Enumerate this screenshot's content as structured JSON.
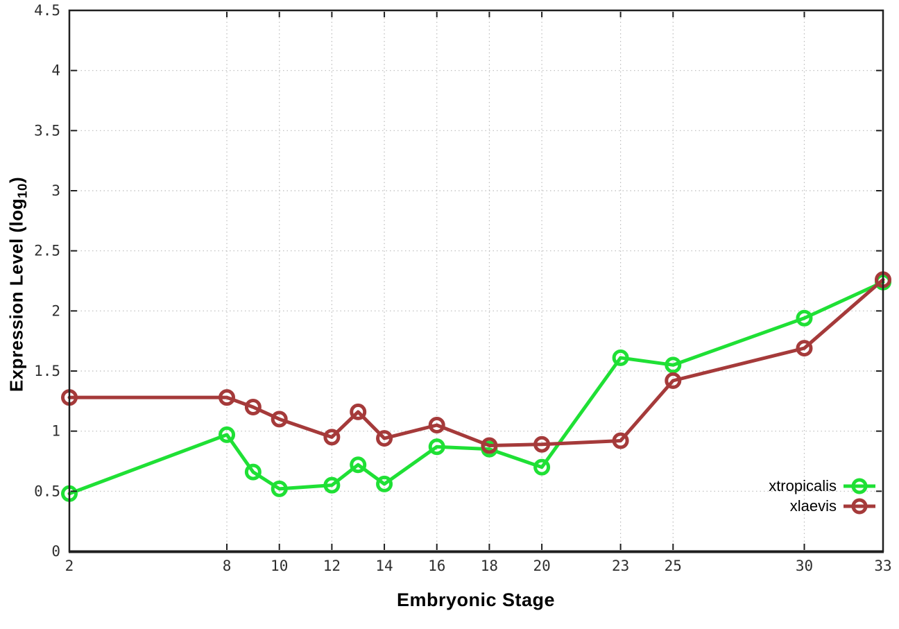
{
  "chart_data": {
    "type": "line",
    "title": "",
    "xlabel": "Embryonic Stage",
    "ylabel": {
      "main": "Expression Level (log",
      "sub": "10",
      "close": ")"
    },
    "x": [
      2,
      8,
      9,
      10,
      12,
      13,
      14,
      16,
      18,
      20,
      23,
      25,
      30,
      33
    ],
    "series": [
      {
        "name": "xtropicalis",
        "color": "#1fe035",
        "marker": "open-circle",
        "values": [
          0.48,
          0.97,
          0.66,
          0.52,
          0.55,
          0.72,
          0.56,
          0.87,
          0.85,
          0.7,
          1.61,
          1.55,
          1.94,
          2.24
        ]
      },
      {
        "name": "xlaevis",
        "color": "#a53a3a",
        "marker": "open-circle",
        "values": [
          1.28,
          1.28,
          1.2,
          1.1,
          0.95,
          1.16,
          0.94,
          1.05,
          0.88,
          0.89,
          0.92,
          1.42,
          1.69,
          2.26
        ]
      }
    ],
    "xlim": [
      2,
      33
    ],
    "ylim": [
      0,
      4.5
    ],
    "x_ticks": [
      2,
      8,
      10,
      12,
      14,
      16,
      18,
      20,
      23,
      25,
      30,
      33
    ],
    "x_tick_labels": [
      "2",
      "8",
      "10",
      "12",
      "14",
      "16",
      "18",
      "20",
      "23",
      "25",
      "30",
      "33"
    ],
    "y_ticks": [
      0,
      0.5,
      1,
      1.5,
      2,
      2.5,
      3,
      3.5,
      4,
      4.5
    ],
    "y_tick_labels": [
      "0",
      "0.5",
      "1",
      "1.5",
      "2",
      "2.5",
      "3",
      "3.5",
      "4",
      "4.5"
    ],
    "grid": true,
    "legend_position": "bottom-right-inside",
    "colors": {
      "background": "#ffffff",
      "grid": "#bbbbbb",
      "axis": "#1f1f1f",
      "tick_text": "#2e2e2e"
    }
  }
}
